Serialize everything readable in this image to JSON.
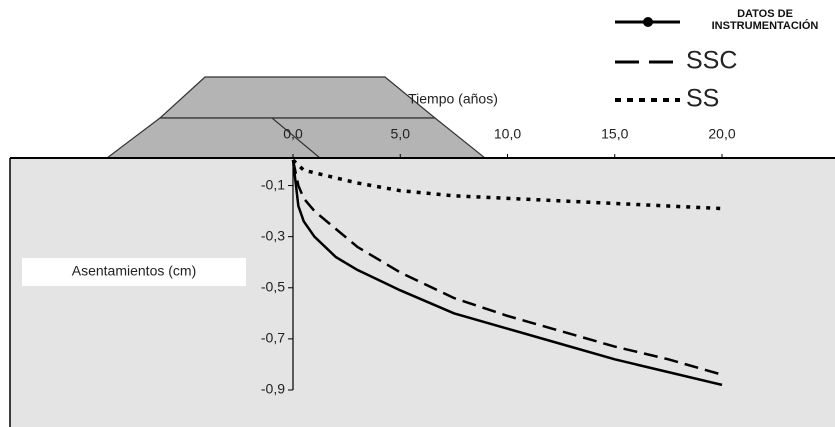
{
  "chart_data": {
    "type": "line",
    "x_label": "Tiempo (años)",
    "y_label": "Asentamientos (cm)",
    "x": [
      0,
      0.25,
      0.5,
      1,
      2,
      3,
      5,
      7.5,
      10,
      12.5,
      15,
      17.5,
      20
    ],
    "series": [
      {
        "name": "DATOS DE INSTRUMENTACIÓN",
        "color": "#000000",
        "linestyle": "solid",
        "values": [
          0,
          -0.18,
          -0.24,
          -0.3,
          -0.38,
          -0.43,
          -0.51,
          -0.6,
          -0.66,
          -0.72,
          -0.78,
          -0.83,
          -0.88
        ]
      },
      {
        "name": "SSC",
        "color": "#000000",
        "linestyle": "dashed",
        "values": [
          0,
          -0.1,
          -0.15,
          -0.2,
          -0.27,
          -0.34,
          -0.44,
          -0.54,
          -0.61,
          -0.67,
          -0.73,
          -0.78,
          -0.84
        ]
      },
      {
        "name": "SS",
        "color": "#000000",
        "linestyle": "dotted",
        "values": [
          0,
          -0.02,
          -0.04,
          -0.05,
          -0.07,
          -0.09,
          -0.12,
          -0.14,
          -0.15,
          -0.16,
          -0.17,
          -0.18,
          -0.19
        ]
      }
    ],
    "xlim": [
      0,
      20
    ],
    "xticks": [
      {
        "value": 0,
        "label": "0,0"
      },
      {
        "value": 5,
        "label": "5,0"
      },
      {
        "value": 10,
        "label": "10,0"
      },
      {
        "value": 15,
        "label": "15,0"
      },
      {
        "value": 20,
        "label": "20,0"
      }
    ],
    "ylim": [
      -0.9,
      0
    ],
    "yticks": [
      {
        "value": -0.1,
        "label": "-0,1"
      },
      {
        "value": -0.3,
        "label": "-0,3"
      },
      {
        "value": -0.5,
        "label": "-0,5"
      },
      {
        "value": -0.7,
        "label": "-0,7"
      },
      {
        "value": -0.9,
        "label": "-0,9"
      }
    ]
  }
}
